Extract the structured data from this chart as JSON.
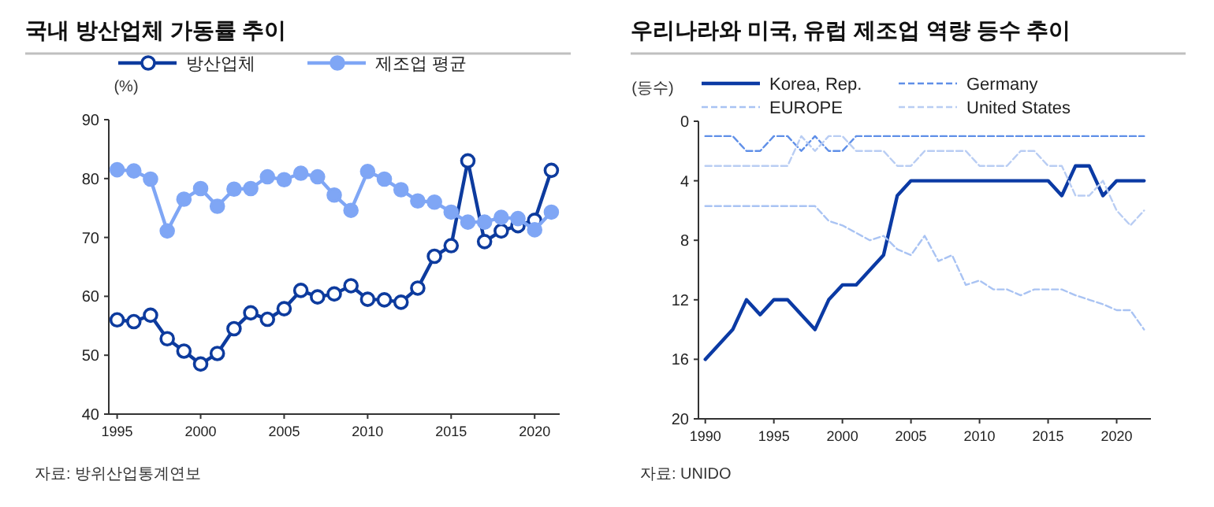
{
  "chart_data": [
    {
      "type": "line",
      "title": "국내 방산업체 가동률 추이",
      "ylabel": "(%)",
      "annotations": [
        "자료: 방위산업통계연보"
      ],
      "x": [
        1995,
        1996,
        1997,
        1998,
        1999,
        2000,
        2001,
        2002,
        2003,
        2004,
        2005,
        2006,
        2007,
        2008,
        2009,
        2010,
        2011,
        2012,
        2013,
        2014,
        2015,
        2016,
        2017,
        2018,
        2019,
        2020,
        2021
      ],
      "series": [
        {
          "name": "방산업체",
          "color": "#0d3b9e",
          "values": [
            56,
            55.7,
            56.8,
            52.8,
            50.7,
            48.5,
            50.3,
            54.5,
            57.2,
            56.1,
            57.9,
            61,
            59.9,
            60.4,
            61.8,
            59.5,
            59.4,
            59,
            61.4,
            66.8,
            68.6,
            83,
            69.3,
            71.1,
            72,
            72.9,
            81.4
          ]
        },
        {
          "name": "제조업 평균",
          "color": "#7fa6f5",
          "values": [
            81.5,
            81.3,
            79.9,
            71.1,
            76.5,
            78.3,
            75.3,
            78.2,
            78.3,
            80.3,
            79.8,
            80.9,
            80.3,
            77.2,
            74.6,
            81.2,
            79.9,
            78.1,
            76.2,
            76,
            74.3,
            72.6,
            72.6,
            73.4,
            73.2,
            71.3,
            74.3
          ]
        }
      ],
      "xlim": [
        1994.5,
        2021.5
      ],
      "xticks": [
        1995,
        2000,
        2005,
        2010,
        2015,
        2020
      ],
      "ylim": [
        40,
        90
      ],
      "yticks": [
        40,
        50,
        60,
        70,
        80,
        90
      ],
      "marker": "circle",
      "line_style": "solid",
      "legend": "top",
      "grid": false
    },
    {
      "type": "line",
      "title": "우리나라와 미국, 유럽 제조업 역량 등수 추이",
      "ylabel": "(등수)",
      "annotations": [
        "자료: UNIDO"
      ],
      "x": [
        1990,
        1991,
        1992,
        1993,
        1994,
        1995,
        1996,
        1997,
        1998,
        1999,
        2000,
        2001,
        2002,
        2003,
        2004,
        2005,
        2006,
        2007,
        2008,
        2009,
        2010,
        2011,
        2012,
        2013,
        2014,
        2015,
        2016,
        2017,
        2018,
        2019,
        2020,
        2021,
        2022
      ],
      "series": [
        {
          "name": "Korea, Rep.",
          "color": "#0b3aa4",
          "line_style": "solid",
          "values": [
            16,
            15,
            14,
            12,
            13,
            12,
            12,
            13,
            14,
            12,
            11,
            11,
            10,
            9,
            5,
            4,
            4,
            4,
            4,
            4,
            4,
            4,
            4,
            4,
            4,
            4,
            5,
            3,
            3,
            5,
            4,
            4,
            4
          ]
        },
        {
          "name": "Germany",
          "color": "#5f8fe8",
          "line_style": "dashed",
          "values": [
            1,
            1,
            1,
            2,
            2,
            1,
            1,
            2,
            1,
            2,
            2,
            1,
            1,
            1,
            1,
            1,
            1,
            1,
            1,
            1,
            1,
            1,
            1,
            1,
            1,
            1,
            1,
            1,
            1,
            1,
            1,
            1,
            1
          ]
        },
        {
          "name": "EUROPE",
          "color": "#a9c3f3",
          "line_style": "dashed",
          "values": [
            5.7,
            5.7,
            5.7,
            5.7,
            5.7,
            5.7,
            5.7,
            5.7,
            5.7,
            6.7,
            7,
            7.5,
            8,
            7.7,
            8.6,
            9,
            7.7,
            9.4,
            9,
            11,
            10.7,
            11.3,
            11.3,
            11.7,
            11.3,
            11.3,
            11.3,
            11.7,
            12,
            12.3,
            12.7,
            12.7,
            14
          ]
        },
        {
          "name": "United States",
          "color": "#b9cdf3",
          "line_style": "dashed",
          "values": [
            3,
            3,
            3,
            3,
            3,
            3,
            3,
            1,
            2,
            1,
            1,
            2,
            2,
            2,
            3,
            3,
            2,
            2,
            2,
            2,
            3,
            3,
            3,
            2,
            2,
            3,
            3,
            5,
            5,
            4,
            6,
            7,
            6
          ]
        }
      ],
      "xlim": [
        1989.5,
        2022.5
      ],
      "xticks": [
        1990,
        1995,
        2000,
        2005,
        2010,
        2015,
        2020
      ],
      "ylim": [
        20,
        0
      ],
      "yticks": [
        0,
        4,
        8,
        12,
        16,
        20
      ],
      "marker": "none",
      "legend": "top",
      "grid": false
    }
  ]
}
